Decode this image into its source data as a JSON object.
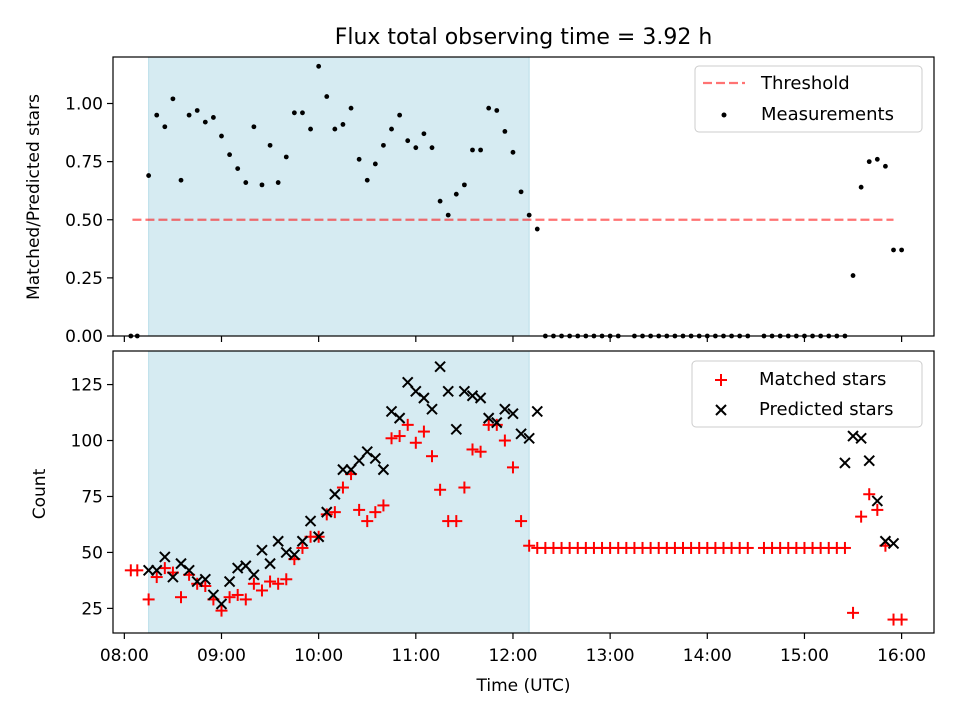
{
  "figure": {
    "title": "Flux total observing time = 3.92 h",
    "colors": {
      "shade": "#add8e6",
      "threshold": "#ff0000",
      "matched": "#ff0000",
      "predicted": "#000000",
      "measurement": "#000000"
    }
  },
  "chart_data": [
    {
      "type": "scatter",
      "title": "Flux total observing time = 3.92 h",
      "xlabel": "",
      "ylabel": "Matched/Predicted stars",
      "xlim": [
        "07:53",
        "16:20"
      ],
      "ylim": [
        0,
        1.2
      ],
      "y_ticks": [
        0,
        0.25,
        0.5,
        0.75,
        1.0
      ],
      "y_tick_labels": [
        "0.00",
        "0.25",
        "0.50",
        "0.75",
        "1.00"
      ],
      "x_ticks": [
        "08:00",
        "09:00",
        "10:00",
        "11:00",
        "12:00",
        "13:00",
        "14:00",
        "15:00",
        "16:00"
      ],
      "legend": {
        "placement": "upper right",
        "entries": [
          "Threshold",
          "Measurements"
        ]
      },
      "shaded_span": [
        "08:15",
        "12:10"
      ],
      "threshold": {
        "name": "Threshold",
        "value": 0.5,
        "x_range": [
          "08:05",
          "15:55"
        ],
        "style": "dashed"
      },
      "series": [
        {
          "name": "Measurements",
          "marker": "dot",
          "points": [
            [
              "08:04",
              0
            ],
            [
              "08:08",
              0
            ],
            [
              "08:15",
              0.69
            ],
            [
              "08:20",
              0.95
            ],
            [
              "08:25",
              0.9
            ],
            [
              "08:30",
              1.02
            ],
            [
              "08:35",
              0.67
            ],
            [
              "08:40",
              0.95
            ],
            [
              "08:45",
              0.97
            ],
            [
              "08:50",
              0.92
            ],
            [
              "08:55",
              0.94
            ],
            [
              "09:00",
              0.86
            ],
            [
              "09:05",
              0.78
            ],
            [
              "09:10",
              0.72
            ],
            [
              "09:15",
              0.66
            ],
            [
              "09:20",
              0.9
            ],
            [
              "09:25",
              0.65
            ],
            [
              "09:30",
              0.82
            ],
            [
              "09:35",
              0.66
            ],
            [
              "09:40",
              0.77
            ],
            [
              "09:45",
              0.96
            ],
            [
              "09:50",
              0.96
            ],
            [
              "09:55",
              0.89
            ],
            [
              "10:00",
              1.16
            ],
            [
              "10:05",
              1.03
            ],
            [
              "10:10",
              0.89
            ],
            [
              "10:15",
              0.91
            ],
            [
              "10:20",
              0.98
            ],
            [
              "10:25",
              0.76
            ],
            [
              "10:30",
              0.67
            ],
            [
              "10:35",
              0.74
            ],
            [
              "10:40",
              0.82
            ],
            [
              "10:45",
              0.89
            ],
            [
              "10:50",
              0.95
            ],
            [
              "10:55",
              0.84
            ],
            [
              "11:00",
              0.81
            ],
            [
              "11:05",
              0.87
            ],
            [
              "11:10",
              0.81
            ],
            [
              "11:15",
              0.58
            ],
            [
              "11:20",
              0.52
            ],
            [
              "11:25",
              0.61
            ],
            [
              "11:30",
              0.65
            ],
            [
              "11:35",
              0.8
            ],
            [
              "11:40",
              0.8
            ],
            [
              "11:45",
              0.98
            ],
            [
              "11:50",
              0.97
            ],
            [
              "11:55",
              0.88
            ],
            [
              "12:00",
              0.79
            ],
            [
              "12:05",
              0.62
            ],
            [
              "12:10",
              0.52
            ],
            [
              "12:15",
              0.46
            ],
            [
              "12:20",
              0
            ],
            [
              "12:25",
              0
            ],
            [
              "12:30",
              0
            ],
            [
              "12:35",
              0
            ],
            [
              "12:40",
              0
            ],
            [
              "12:45",
              0
            ],
            [
              "12:50",
              0
            ],
            [
              "12:55",
              0
            ],
            [
              "13:00",
              0
            ],
            [
              "13:05",
              0
            ],
            [
              "13:15",
              0
            ],
            [
              "13:20",
              0
            ],
            [
              "13:25",
              0
            ],
            [
              "13:30",
              0
            ],
            [
              "13:35",
              0
            ],
            [
              "13:40",
              0
            ],
            [
              "13:45",
              0
            ],
            [
              "13:50",
              0
            ],
            [
              "13:55",
              0
            ],
            [
              "14:00",
              0
            ],
            [
              "14:05",
              0
            ],
            [
              "14:10",
              0
            ],
            [
              "14:15",
              0
            ],
            [
              "14:20",
              0
            ],
            [
              "14:25",
              0
            ],
            [
              "14:35",
              0
            ],
            [
              "14:40",
              0
            ],
            [
              "14:45",
              0
            ],
            [
              "14:50",
              0
            ],
            [
              "14:55",
              0
            ],
            [
              "15:00",
              0
            ],
            [
              "15:05",
              0
            ],
            [
              "15:10",
              0
            ],
            [
              "15:15",
              0
            ],
            [
              "15:20",
              0
            ],
            [
              "15:25",
              0
            ],
            [
              "15:30",
              0.26
            ],
            [
              "15:35",
              0.64
            ],
            [
              "15:40",
              0.75
            ],
            [
              "15:45",
              0.76
            ],
            [
              "15:50",
              0.73
            ],
            [
              "15:55",
              0.37
            ],
            [
              "16:00",
              0.37
            ]
          ]
        }
      ]
    },
    {
      "type": "scatter",
      "title": "",
      "xlabel": "Time (UTC)",
      "ylabel": "Count",
      "xlim": [
        "07:53",
        "16:20"
      ],
      "ylim": [
        14,
        140
      ],
      "y_ticks": [
        25,
        50,
        75,
        100,
        125
      ],
      "y_tick_labels": [
        "25",
        "50",
        "75",
        "100",
        "125"
      ],
      "x_ticks": [
        "08:00",
        "09:00",
        "10:00",
        "11:00",
        "12:00",
        "13:00",
        "14:00",
        "15:00",
        "16:00"
      ],
      "legend": {
        "placement": "upper right",
        "entries": [
          "Matched stars",
          "Predicted stars"
        ]
      },
      "shaded_span": [
        "08:15",
        "12:10"
      ],
      "series": [
        {
          "name": "Matched stars",
          "marker": "plus",
          "points": [
            [
              "08:04",
              42
            ],
            [
              "08:08",
              42
            ],
            [
              "08:15",
              29
            ],
            [
              "08:20",
              39
            ],
            [
              "08:25",
              43
            ],
            [
              "08:30",
              41
            ],
            [
              "08:35",
              30
            ],
            [
              "08:40",
              40
            ],
            [
              "08:45",
              36
            ],
            [
              "08:50",
              35
            ],
            [
              "08:55",
              29
            ],
            [
              "09:00",
              24
            ],
            [
              "09:05",
              30
            ],
            [
              "09:10",
              31
            ],
            [
              "09:15",
              29
            ],
            [
              "09:20",
              36
            ],
            [
              "09:25",
              33
            ],
            [
              "09:30",
              37
            ],
            [
              "09:35",
              36
            ],
            [
              "09:40",
              38
            ],
            [
              "09:45",
              47
            ],
            [
              "09:50",
              52
            ],
            [
              "09:55",
              57
            ],
            [
              "10:00",
              57
            ],
            [
              "10:05",
              67
            ],
            [
              "10:10",
              68
            ],
            [
              "10:15",
              79
            ],
            [
              "10:20",
              85
            ],
            [
              "10:25",
              69
            ],
            [
              "10:30",
              64
            ],
            [
              "10:35",
              68
            ],
            [
              "10:40",
              71
            ],
            [
              "10:45",
              101
            ],
            [
              "10:50",
              102
            ],
            [
              "10:55",
              107
            ],
            [
              "11:00",
              99
            ],
            [
              "11:05",
              104
            ],
            [
              "11:10",
              93
            ],
            [
              "11:15",
              78
            ],
            [
              "11:20",
              64
            ],
            [
              "11:25",
              64
            ],
            [
              "11:30",
              79
            ],
            [
              "11:35",
              96
            ],
            [
              "11:40",
              95
            ],
            [
              "11:45",
              107
            ],
            [
              "11:50",
              107
            ],
            [
              "11:55",
              100
            ],
            [
              "12:00",
              88
            ],
            [
              "12:05",
              64
            ],
            [
              "12:10",
              53
            ],
            [
              "12:15",
              52
            ],
            [
              "12:20",
              52
            ],
            [
              "12:25",
              52
            ],
            [
              "12:30",
              52
            ],
            [
              "12:35",
              52
            ],
            [
              "12:40",
              52
            ],
            [
              "12:45",
              52
            ],
            [
              "12:50",
              52
            ],
            [
              "12:55",
              52
            ],
            [
              "13:00",
              52
            ],
            [
              "13:05",
              52
            ],
            [
              "13:10",
              52
            ],
            [
              "13:15",
              52
            ],
            [
              "13:20",
              52
            ],
            [
              "13:25",
              52
            ],
            [
              "13:30",
              52
            ],
            [
              "13:35",
              52
            ],
            [
              "13:40",
              52
            ],
            [
              "13:45",
              52
            ],
            [
              "13:50",
              52
            ],
            [
              "13:55",
              52
            ],
            [
              "14:00",
              52
            ],
            [
              "14:05",
              52
            ],
            [
              "14:10",
              52
            ],
            [
              "14:15",
              52
            ],
            [
              "14:20",
              52
            ],
            [
              "14:25",
              52
            ],
            [
              "14:35",
              52
            ],
            [
              "14:40",
              52
            ],
            [
              "14:45",
              52
            ],
            [
              "14:50",
              52
            ],
            [
              "14:55",
              52
            ],
            [
              "15:00",
              52
            ],
            [
              "15:05",
              52
            ],
            [
              "15:10",
              52
            ],
            [
              "15:15",
              52
            ],
            [
              "15:20",
              52
            ],
            [
              "15:25",
              52
            ],
            [
              "15:30",
              23
            ],
            [
              "15:35",
              66
            ],
            [
              "15:40",
              76
            ],
            [
              "15:45",
              69
            ],
            [
              "15:50",
              53
            ],
            [
              "15:55",
              20
            ],
            [
              "16:00",
              20
            ]
          ]
        },
        {
          "name": "Predicted stars",
          "marker": "x",
          "points": [
            [
              "08:15",
              42
            ],
            [
              "08:20",
              42
            ],
            [
              "08:25",
              48
            ],
            [
              "08:30",
              39
            ],
            [
              "08:35",
              45
            ],
            [
              "08:40",
              42
            ],
            [
              "08:45",
              37
            ],
            [
              "08:50",
              38
            ],
            [
              "08:55",
              31
            ],
            [
              "09:00",
              27
            ],
            [
              "09:05",
              37
            ],
            [
              "09:10",
              43
            ],
            [
              "09:15",
              44
            ],
            [
              "09:20",
              40
            ],
            [
              "09:25",
              51
            ],
            [
              "09:30",
              45
            ],
            [
              "09:35",
              55
            ],
            [
              "09:40",
              50
            ],
            [
              "09:45",
              49
            ],
            [
              "09:50",
              55
            ],
            [
              "09:55",
              64
            ],
            [
              "10:00",
              57
            ],
            [
              "10:05",
              68
            ],
            [
              "10:10",
              76
            ],
            [
              "10:15",
              87
            ],
            [
              "10:20",
              87
            ],
            [
              "10:25",
              91
            ],
            [
              "10:30",
              95
            ],
            [
              "10:35",
              92
            ],
            [
              "10:40",
              87
            ],
            [
              "10:45",
              113
            ],
            [
              "10:50",
              110
            ],
            [
              "10:55",
              126
            ],
            [
              "11:00",
              122
            ],
            [
              "11:05",
              119
            ],
            [
              "11:10",
              114
            ],
            [
              "11:15",
              133
            ],
            [
              "11:20",
              122
            ],
            [
              "11:25",
              105
            ],
            [
              "11:30",
              122
            ],
            [
              "11:35",
              120
            ],
            [
              "11:40",
              119
            ],
            [
              "11:45",
              110
            ],
            [
              "11:50",
              108
            ],
            [
              "11:55",
              114
            ],
            [
              "12:00",
              112
            ],
            [
              "12:05",
              103
            ],
            [
              "12:10",
              101
            ],
            [
              "12:15",
              113
            ],
            [
              "15:25",
              90
            ],
            [
              "15:30",
              102
            ],
            [
              "15:35",
              101
            ],
            [
              "15:40",
              91
            ],
            [
              "15:45",
              73
            ],
            [
              "15:50",
              55
            ],
            [
              "15:55",
              54
            ]
          ]
        }
      ]
    }
  ]
}
